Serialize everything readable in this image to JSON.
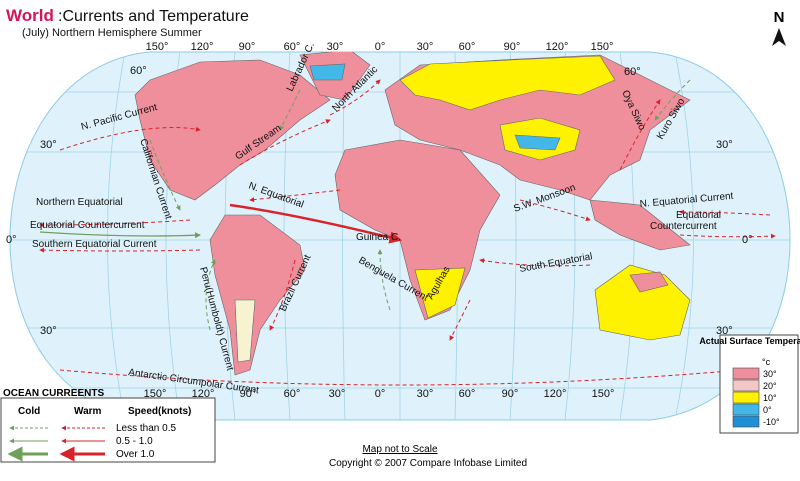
{
  "header": {
    "title_highlight": "World",
    "title": ":Currents and Temperature",
    "subtitle": "(July) Northern Hemisphere Summer"
  },
  "north": "N",
  "map": {
    "top_longitudes": [
      "150°",
      "120°",
      "90°",
      "60°",
      "30°",
      "0°",
      "30°",
      "60°",
      "90°",
      "120°",
      "150°"
    ],
    "bottom_longitudes": [
      "150°",
      "120°",
      "90°",
      "60°",
      "30°",
      "0°",
      "30°",
      "60°",
      "90°",
      "120°",
      "150°"
    ],
    "left_latitudes": [
      "60°",
      "30°",
      "0°",
      "30°"
    ],
    "right_latitudes": [
      "60°",
      "30°",
      "0°",
      "30°"
    ],
    "current_labels": [
      "N. Pacific Current",
      "Californian Current",
      "Gulf Stream",
      "Labrador C.",
      "North Atlantic",
      "N. Equatorial",
      "Northern Equatorial",
      "Equatorial Countercurrent",
      "Southern Equatorial Current",
      "Guinea C.",
      "Benguela Current",
      "Brazil Current",
      "Peru(Humboldt) Current",
      "Antarctic Circumpolar Current",
      "Agulhas",
      "S.W. Monsoon",
      "South Equatorial",
      "Oya Siwo",
      "Kuro Siwo",
      "N. Equatorial Current",
      "Equatorial",
      "Countercurrent"
    ]
  },
  "currents_legend": {
    "title": "OCEAN CURREENTS",
    "cold": "Cold",
    "warm": "Warm",
    "speed": "Speed(knots)",
    "rows": [
      "Less than 0.5",
      "0.5 - 1.0",
      "Over 1.0"
    ]
  },
  "temperature_legend": {
    "title": "Actual Surface Temperature",
    "unit": "°c",
    "items": [
      {
        "label": "30°",
        "color": "#ef8f9c"
      },
      {
        "label": "20°",
        "color": "#f3c7c8"
      },
      {
        "label": "10°",
        "color": "#fff200"
      },
      {
        "label": "0°",
        "color": "#42b8e8"
      },
      {
        "label": "-10°",
        "color": "#1f8fd6"
      }
    ]
  },
  "footer": {
    "note": "Map not to Scale",
    "copyright": "Copyright © 2007 Compare Infobase Limited"
  }
}
